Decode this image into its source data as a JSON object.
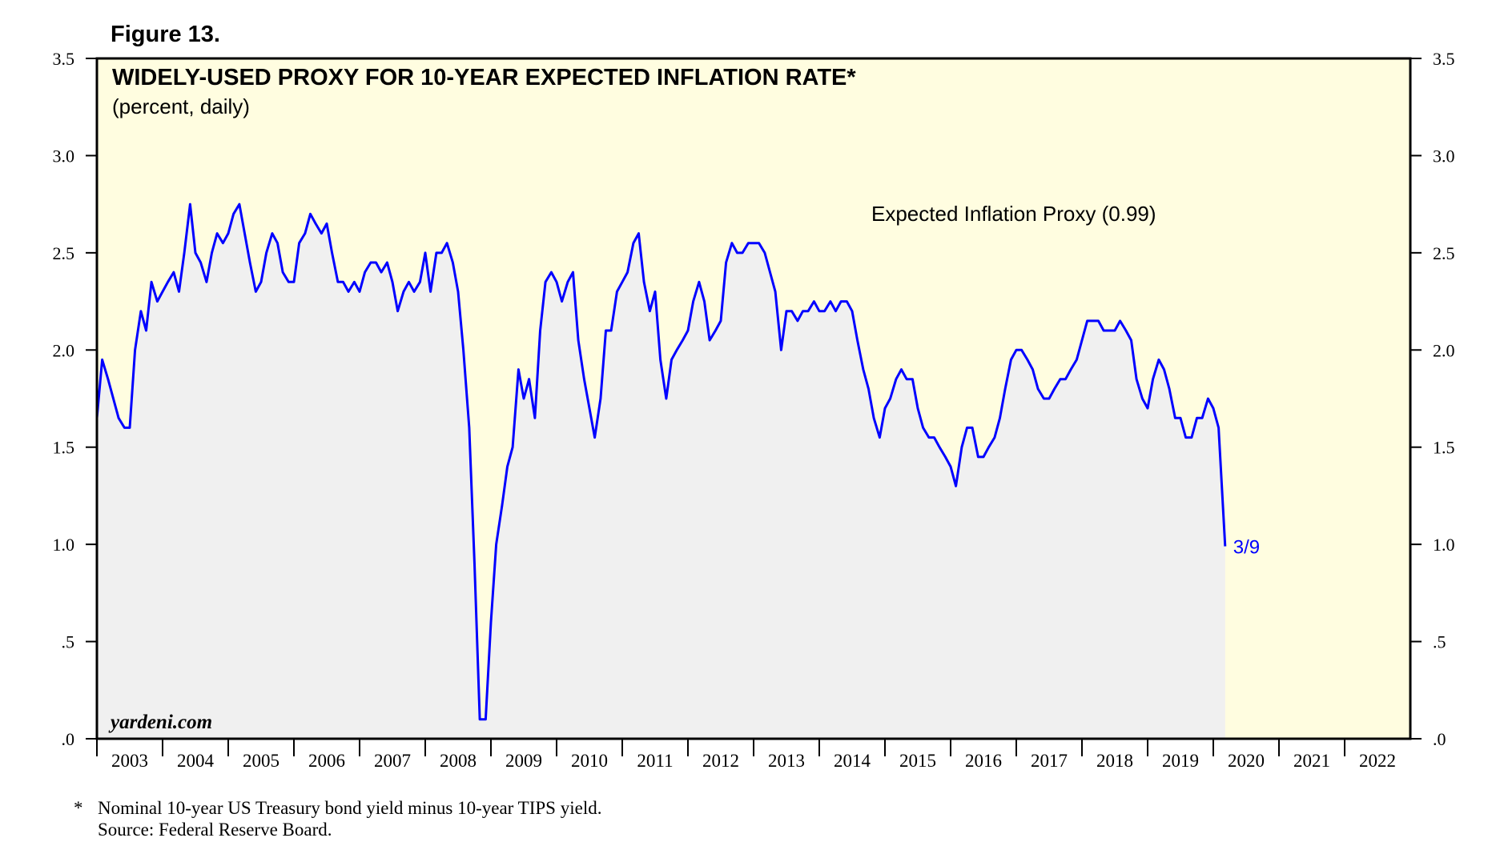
{
  "figure_label": "Figure 13.",
  "footnote": [
    "*",
    "Nominal 10-year US Treasury bond yield minus 10-year TIPS yield.",
    "Source: Federal Reserve Board."
  ],
  "chart_data": {
    "type": "line",
    "title": "WIDELY-USED PROXY FOR 10-YEAR EXPECTED INFLATION RATE*",
    "subtitle": "(percent, daily)",
    "watermark": "yardeni.com",
    "annotations": [
      "Expected Inflation Proxy (0.99)",
      "3/9"
    ],
    "xlim": [
      2003,
      2023
    ],
    "xticks": [
      2003,
      2004,
      2005,
      2006,
      2007,
      2008,
      2009,
      2010,
      2011,
      2012,
      2013,
      2014,
      2015,
      2016,
      2017,
      2018,
      2019,
      2020,
      2021,
      2022
    ],
    "ylim": [
      0,
      3.5
    ],
    "yticks": [
      {
        "value": 0,
        "label": ".0"
      },
      {
        "value": 0.5,
        "label": ".5"
      },
      {
        "value": 1,
        "label": "1.0"
      },
      1.5,
      {
        "value": 2,
        "label": "2.0"
      },
      2.5,
      {
        "value": 3,
        "label": "3.0"
      },
      3.5
    ],
    "series": [
      {
        "name": "Expected Inflation Proxy",
        "color": "#0000ff",
        "x": [
          2003.0,
          2003.08,
          2003.17,
          2003.25,
          2003.33,
          2003.42,
          2003.5,
          2003.58,
          2003.67,
          2003.75,
          2003.83,
          2003.92,
          2004.0,
          2004.08,
          2004.17,
          2004.25,
          2004.33,
          2004.42,
          2004.5,
          2004.58,
          2004.67,
          2004.75,
          2004.83,
          2004.92,
          2005.0,
          2005.08,
          2005.17,
          2005.25,
          2005.33,
          2005.42,
          2005.5,
          2005.58,
          2005.67,
          2005.75,
          2005.83,
          2005.92,
          2006.0,
          2006.08,
          2006.17,
          2006.25,
          2006.33,
          2006.42,
          2006.5,
          2006.58,
          2006.67,
          2006.75,
          2006.83,
          2006.92,
          2007.0,
          2007.08,
          2007.17,
          2007.25,
          2007.33,
          2007.42,
          2007.5,
          2007.58,
          2007.67,
          2007.75,
          2007.83,
          2007.92,
          2008.0,
          2008.08,
          2008.17,
          2008.25,
          2008.33,
          2008.42,
          2008.5,
          2008.58,
          2008.67,
          2008.75,
          2008.83,
          2008.92,
          2009.0,
          2009.08,
          2009.17,
          2009.25,
          2009.33,
          2009.42,
          2009.5,
          2009.58,
          2009.67,
          2009.75,
          2009.83,
          2009.92,
          2010.0,
          2010.08,
          2010.17,
          2010.25,
          2010.33,
          2010.42,
          2010.5,
          2010.58,
          2010.67,
          2010.75,
          2010.83,
          2010.92,
          2011.0,
          2011.08,
          2011.17,
          2011.25,
          2011.33,
          2011.42,
          2011.5,
          2011.58,
          2011.67,
          2011.75,
          2011.83,
          2011.92,
          2012.0,
          2012.08,
          2012.17,
          2012.25,
          2012.33,
          2012.42,
          2012.5,
          2012.58,
          2012.67,
          2012.75,
          2012.83,
          2012.92,
          2013.0,
          2013.08,
          2013.17,
          2013.25,
          2013.33,
          2013.42,
          2013.5,
          2013.58,
          2013.67,
          2013.75,
          2013.83,
          2013.92,
          2014.0,
          2014.08,
          2014.17,
          2014.25,
          2014.33,
          2014.42,
          2014.5,
          2014.58,
          2014.67,
          2014.75,
          2014.83,
          2014.92,
          2015.0,
          2015.08,
          2015.17,
          2015.25,
          2015.33,
          2015.42,
          2015.5,
          2015.58,
          2015.67,
          2015.75,
          2015.83,
          2015.92,
          2016.0,
          2016.08,
          2016.17,
          2016.25,
          2016.33,
          2016.42,
          2016.5,
          2016.58,
          2016.67,
          2016.75,
          2016.83,
          2016.92,
          2017.0,
          2017.08,
          2017.17,
          2017.25,
          2017.33,
          2017.42,
          2017.5,
          2017.58,
          2017.67,
          2017.75,
          2017.83,
          2017.92,
          2018.0,
          2018.08,
          2018.17,
          2018.25,
          2018.33,
          2018.42,
          2018.5,
          2018.58,
          2018.67,
          2018.75,
          2018.83,
          2018.92,
          2019.0,
          2019.08,
          2019.17,
          2019.25,
          2019.33,
          2019.42,
          2019.5,
          2019.58,
          2019.67,
          2019.75,
          2019.83,
          2019.92,
          2020.0,
          2020.08,
          2020.18
        ],
        "values": [
          1.65,
          1.95,
          1.85,
          1.75,
          1.65,
          1.6,
          1.6,
          2.0,
          2.2,
          2.1,
          2.35,
          2.25,
          2.3,
          2.35,
          2.4,
          2.3,
          2.5,
          2.75,
          2.5,
          2.45,
          2.35,
          2.5,
          2.6,
          2.55,
          2.6,
          2.7,
          2.75,
          2.6,
          2.45,
          2.3,
          2.35,
          2.5,
          2.6,
          2.55,
          2.4,
          2.35,
          2.35,
          2.55,
          2.6,
          2.7,
          2.65,
          2.6,
          2.65,
          2.5,
          2.35,
          2.35,
          2.3,
          2.35,
          2.3,
          2.4,
          2.45,
          2.45,
          2.4,
          2.45,
          2.35,
          2.2,
          2.3,
          2.35,
          2.3,
          2.35,
          2.5,
          2.3,
          2.5,
          2.5,
          2.55,
          2.45,
          2.3,
          2.0,
          1.6,
          0.9,
          0.1,
          0.1,
          0.6,
          1.0,
          1.2,
          1.4,
          1.5,
          1.9,
          1.75,
          1.85,
          1.65,
          2.1,
          2.35,
          2.4,
          2.35,
          2.25,
          2.35,
          2.4,
          2.05,
          1.85,
          1.7,
          1.55,
          1.75,
          2.1,
          2.1,
          2.3,
          2.35,
          2.4,
          2.55,
          2.6,
          2.35,
          2.2,
          2.3,
          1.95,
          1.75,
          1.95,
          2.0,
          2.05,
          2.1,
          2.25,
          2.35,
          2.25,
          2.05,
          2.1,
          2.15,
          2.45,
          2.55,
          2.5,
          2.5,
          2.55,
          2.55,
          2.55,
          2.5,
          2.4,
          2.3,
          2.0,
          2.2,
          2.2,
          2.15,
          2.2,
          2.2,
          2.25,
          2.2,
          2.2,
          2.25,
          2.2,
          2.25,
          2.25,
          2.2,
          2.05,
          1.9,
          1.8,
          1.65,
          1.55,
          1.7,
          1.75,
          1.85,
          1.9,
          1.85,
          1.85,
          1.7,
          1.6,
          1.55,
          1.55,
          1.5,
          1.45,
          1.4,
          1.3,
          1.5,
          1.6,
          1.6,
          1.45,
          1.45,
          1.5,
          1.55,
          1.65,
          1.8,
          1.95,
          2.0,
          2.0,
          1.95,
          1.9,
          1.8,
          1.75,
          1.75,
          1.8,
          1.85,
          1.85,
          1.9,
          1.95,
          2.05,
          2.15,
          2.15,
          2.15,
          2.1,
          2.1,
          2.1,
          2.15,
          2.1,
          2.05,
          1.85,
          1.75,
          1.7,
          1.85,
          1.95,
          1.9,
          1.8,
          1.65,
          1.65,
          1.55,
          1.55,
          1.65,
          1.65,
          1.75,
          1.7,
          1.6,
          0.99
        ]
      }
    ]
  }
}
